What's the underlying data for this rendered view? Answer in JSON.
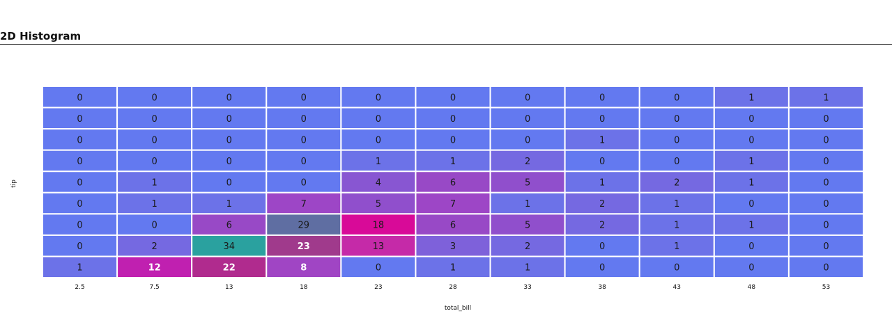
{
  "page": {
    "title": "2D Histogram"
  },
  "chart_data": {
    "type": "heatmap",
    "xlabel": "total_bill",
    "ylabel": "tip",
    "x_categories": [
      "2.5",
      "7.5",
      "13",
      "18",
      "23",
      "28",
      "33",
      "38",
      "43",
      "48",
      "53"
    ],
    "y_categories": [
      "",
      "",
      "",
      "",
      "",
      "",
      "",
      "",
      ""
    ],
    "values": [
      [
        0,
        0,
        0,
        0,
        0,
        0,
        0,
        0,
        0,
        1,
        1
      ],
      [
        0,
        0,
        0,
        0,
        0,
        0,
        0,
        0,
        0,
        0,
        0
      ],
      [
        0,
        0,
        0,
        0,
        0,
        0,
        0,
        1,
        0,
        0,
        0
      ],
      [
        0,
        0,
        0,
        0,
        1,
        1,
        2,
        0,
        0,
        1,
        0
      ],
      [
        0,
        1,
        0,
        0,
        4,
        6,
        5,
        1,
        2,
        1,
        0
      ],
      [
        0,
        1,
        1,
        7,
        5,
        7,
        1,
        2,
        1,
        0,
        0
      ],
      [
        0,
        0,
        6,
        29,
        18,
        6,
        5,
        2,
        1,
        1,
        0
      ],
      [
        0,
        2,
        34,
        23,
        13,
        3,
        2,
        0,
        1,
        0,
        0
      ],
      [
        1,
        12,
        22,
        8,
        0,
        1,
        1,
        0,
        0,
        0,
        0
      ]
    ],
    "bold_values": [
      12,
      22,
      8,
      23
    ],
    "colors": {
      "0": "#6379f0",
      "1": "#6c72e8",
      "2": "#7569e1",
      "3": "#7e61da",
      "4": "#8856d2",
      "5": "#904fcc",
      "6": "#9849c6",
      "7": "#9d46c6",
      "8": "#a045c4",
      "12": "#c020b0",
      "13": "#c52aa8",
      "18": "#d80a98",
      "22": "#b02b8e",
      "23": "#a03a8c",
      "29": "#5f6ea2",
      "34": "#2aa19f"
    }
  }
}
